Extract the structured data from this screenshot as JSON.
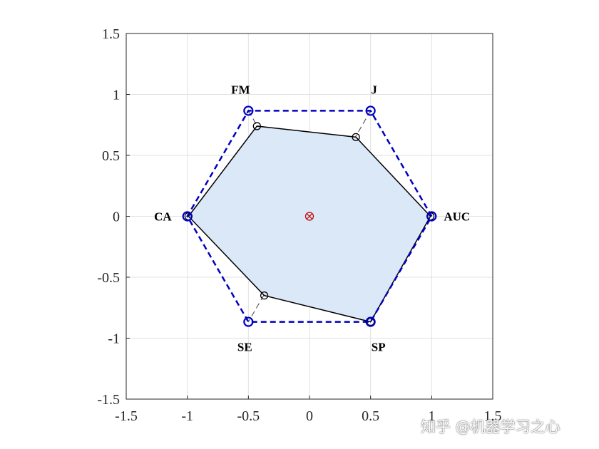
{
  "chart_data": {
    "type": "radar",
    "axis_ticks": [
      "-1.5",
      "-1",
      "-0.5",
      "0",
      "0.5",
      "1",
      "1.5"
    ],
    "xlim": [
      -1.5,
      1.5
    ],
    "ylim": [
      -1.5,
      1.5
    ],
    "grid": true,
    "metrics": [
      "AUC",
      "J",
      "FM",
      "CA",
      "SE",
      "SP"
    ],
    "reference": {
      "x": [
        1,
        0.5,
        -0.5,
        -1,
        -0.5,
        0.5
      ],
      "y": [
        0,
        0.866,
        0.866,
        0,
        -0.866,
        -0.866
      ]
    },
    "model": {
      "x": [
        0.99,
        0.38,
        -0.43,
        -0.99,
        -0.37,
        0.5
      ],
      "y": [
        0,
        0.65,
        0.74,
        0,
        -0.65,
        -0.866
      ]
    },
    "colors": {
      "fill": "#dbe8f7",
      "reference": "#0000c0",
      "model": "#000000",
      "center": "#c00000"
    }
  },
  "watermark": "知乎 @机器学习之心"
}
